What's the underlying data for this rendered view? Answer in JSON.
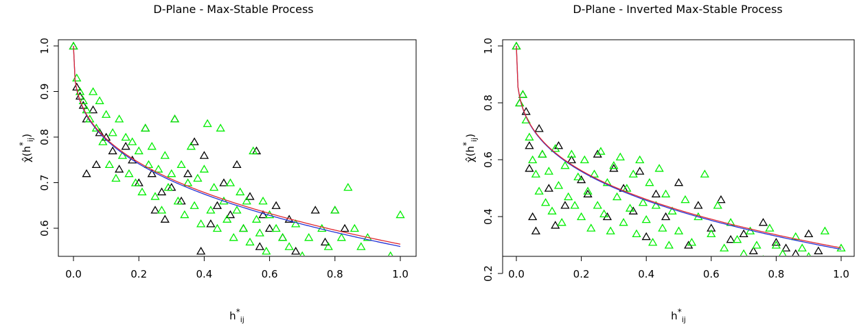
{
  "colors": {
    "black_series": "#000000",
    "green_series": "#00ee00",
    "curve_red": "#e0262f",
    "curve_blue": "#2432d6"
  },
  "chart_data": [
    {
      "type": "scatter",
      "title": "D-Plane - Max-Stable Process",
      "xlabel": "h*ij",
      "ylabel": "χ̂(h*ij)",
      "xlim": [
        0,
        1
      ],
      "ylim": [
        0.52,
        1.0
      ],
      "xticks": [
        "0.0",
        "0.2",
        "0.4",
        "0.6",
        "0.8",
        "1.0"
      ],
      "yticks": [
        "0.6",
        "0.7",
        "0.8",
        "0.9",
        "1.0"
      ],
      "xtick_values": [
        0,
        0.2,
        0.4,
        0.6,
        0.8,
        1.0
      ],
      "ytick_values": [
        0.6,
        0.7,
        0.8,
        0.9,
        1.0
      ],
      "grid": false,
      "point_marker": "open triangle",
      "series": [
        {
          "color_key": "black_series",
          "points": [
            [
              0.0,
              1.0
            ],
            [
              0.01,
              0.91
            ],
            [
              0.02,
              0.89
            ],
            [
              0.03,
              0.87
            ],
            [
              0.04,
              0.84
            ],
            [
              0.04,
              0.72
            ],
            [
              0.06,
              0.86
            ],
            [
              0.07,
              0.74
            ],
            [
              0.08,
              0.81
            ],
            [
              0.1,
              0.8
            ],
            [
              0.12,
              0.77
            ],
            [
              0.14,
              0.73
            ],
            [
              0.16,
              0.78
            ],
            [
              0.18,
              0.75
            ],
            [
              0.2,
              0.7
            ],
            [
              0.22,
              0.82
            ],
            [
              0.24,
              0.72
            ],
            [
              0.25,
              0.64
            ],
            [
              0.27,
              0.68
            ],
            [
              0.28,
              0.62
            ],
            [
              0.3,
              0.69
            ],
            [
              0.31,
              0.84
            ],
            [
              0.33,
              0.66
            ],
            [
              0.35,
              0.72
            ],
            [
              0.37,
              0.79
            ],
            [
              0.39,
              0.55
            ],
            [
              0.4,
              0.76
            ],
            [
              0.42,
              0.61
            ],
            [
              0.44,
              0.65
            ],
            [
              0.46,
              0.7
            ],
            [
              0.48,
              0.63
            ],
            [
              0.5,
              0.74
            ],
            [
              0.52,
              0.6
            ],
            [
              0.54,
              0.67
            ],
            [
              0.56,
              0.77
            ],
            [
              0.57,
              0.56
            ],
            [
              0.58,
              0.63
            ],
            [
              0.6,
              0.6
            ],
            [
              0.62,
              0.65
            ],
            [
              0.64,
              0.58
            ],
            [
              0.66,
              0.62
            ],
            [
              0.68,
              0.55
            ],
            [
              0.7,
              0.53
            ],
            [
              0.72,
              0.52
            ],
            [
              0.74,
              0.64
            ],
            [
              0.77,
              0.57
            ],
            [
              0.8,
              0.64
            ],
            [
              0.83,
              0.6
            ]
          ]
        },
        {
          "color_key": "green_series",
          "points": [
            [
              0.0,
              1.0
            ],
            [
              0.01,
              0.93
            ],
            [
              0.02,
              0.9
            ],
            [
              0.03,
              0.88
            ],
            [
              0.04,
              0.86
            ],
            [
              0.05,
              0.84
            ],
            [
              0.06,
              0.9
            ],
            [
              0.07,
              0.82
            ],
            [
              0.08,
              0.88
            ],
            [
              0.09,
              0.79
            ],
            [
              0.1,
              0.85
            ],
            [
              0.11,
              0.74
            ],
            [
              0.12,
              0.81
            ],
            [
              0.13,
              0.71
            ],
            [
              0.14,
              0.84
            ],
            [
              0.15,
              0.76
            ],
            [
              0.16,
              0.8
            ],
            [
              0.17,
              0.72
            ],
            [
              0.18,
              0.79
            ],
            [
              0.19,
              0.7
            ],
            [
              0.2,
              0.77
            ],
            [
              0.21,
              0.68
            ],
            [
              0.22,
              0.82
            ],
            [
              0.23,
              0.74
            ],
            [
              0.24,
              0.78
            ],
            [
              0.25,
              0.67
            ],
            [
              0.26,
              0.73
            ],
            [
              0.27,
              0.64
            ],
            [
              0.28,
              0.76
            ],
            [
              0.29,
              0.69
            ],
            [
              0.3,
              0.72
            ],
            [
              0.31,
              0.84
            ],
            [
              0.32,
              0.66
            ],
            [
              0.33,
              0.74
            ],
            [
              0.34,
              0.63
            ],
            [
              0.35,
              0.7
            ],
            [
              0.36,
              0.78
            ],
            [
              0.37,
              0.65
            ],
            [
              0.38,
              0.71
            ],
            [
              0.39,
              0.61
            ],
            [
              0.4,
              0.73
            ],
            [
              0.41,
              0.83
            ],
            [
              0.42,
              0.64
            ],
            [
              0.43,
              0.69
            ],
            [
              0.44,
              0.6
            ],
            [
              0.45,
              0.82
            ],
            [
              0.46,
              0.66
            ],
            [
              0.47,
              0.62
            ],
            [
              0.48,
              0.7
            ],
            [
              0.49,
              0.58
            ],
            [
              0.5,
              0.64
            ],
            [
              0.51,
              0.68
            ],
            [
              0.52,
              0.6
            ],
            [
              0.53,
              0.66
            ],
            [
              0.54,
              0.57
            ],
            [
              0.55,
              0.77
            ],
            [
              0.56,
              0.62
            ],
            [
              0.57,
              0.59
            ],
            [
              0.58,
              0.66
            ],
            [
              0.59,
              0.55
            ],
            [
              0.6,
              0.63
            ],
            [
              0.62,
              0.6
            ],
            [
              0.64,
              0.58
            ],
            [
              0.66,
              0.56
            ],
            [
              0.68,
              0.61
            ],
            [
              0.7,
              0.54
            ],
            [
              0.72,
              0.58
            ],
            [
              0.74,
              0.52
            ],
            [
              0.76,
              0.6
            ],
            [
              0.78,
              0.56
            ],
            [
              0.8,
              0.64
            ],
            [
              0.82,
              0.58
            ],
            [
              0.84,
              0.69
            ],
            [
              0.86,
              0.6
            ],
            [
              0.88,
              0.56
            ],
            [
              0.9,
              0.58
            ],
            [
              0.97,
              0.54
            ],
            [
              1.0,
              0.63
            ]
          ]
        }
      ],
      "curves": [
        {
          "color_key": "curve_blue",
          "start": [
            0.0,
            1.0
          ],
          "end": [
            1.0,
            0.56
          ],
          "exponent": 0.33
        },
        {
          "color_key": "curve_red",
          "start": [
            0.0,
            1.0
          ],
          "end": [
            1.0,
            0.565
          ],
          "exponent": 0.33
        }
      ]
    },
    {
      "type": "scatter",
      "title": "D-Plane - Inverted Max-Stable Process",
      "xlabel": "h*ij",
      "ylabel": "χ̂(h*ij)",
      "xlim": [
        0,
        1
      ],
      "ylim": [
        0.2,
        1.0
      ],
      "xticks": [
        "0.0",
        "0.2",
        "0.4",
        "0.6",
        "0.8",
        "1.0"
      ],
      "yticks": [
        "0.2",
        "0.4",
        "0.6",
        "0.8",
        "1.0"
      ],
      "xtick_values": [
        0,
        0.2,
        0.4,
        0.6,
        0.8,
        1.0
      ],
      "ytick_values": [
        0.2,
        0.4,
        0.6,
        0.8,
        1.0
      ],
      "grid": false,
      "point_marker": "open triangle",
      "series": [
        {
          "color_key": "black_series",
          "points": [
            [
              0.0,
              1.0
            ],
            [
              0.01,
              0.8
            ],
            [
              0.02,
              0.83
            ],
            [
              0.03,
              0.77
            ],
            [
              0.04,
              0.65
            ],
            [
              0.04,
              0.57
            ],
            [
              0.05,
              0.4
            ],
            [
              0.06,
              0.35
            ],
            [
              0.07,
              0.71
            ],
            [
              0.08,
              0.62
            ],
            [
              0.1,
              0.5
            ],
            [
              0.12,
              0.37
            ],
            [
              0.13,
              0.65
            ],
            [
              0.15,
              0.44
            ],
            [
              0.17,
              0.6
            ],
            [
              0.2,
              0.53
            ],
            [
              0.22,
              0.48
            ],
            [
              0.25,
              0.62
            ],
            [
              0.28,
              0.4
            ],
            [
              0.3,
              0.57
            ],
            [
              0.33,
              0.5
            ],
            [
              0.36,
              0.42
            ],
            [
              0.38,
              0.56
            ],
            [
              0.4,
              0.33
            ],
            [
              0.43,
              0.48
            ],
            [
              0.46,
              0.4
            ],
            [
              0.5,
              0.52
            ],
            [
              0.53,
              0.3
            ],
            [
              0.56,
              0.44
            ],
            [
              0.6,
              0.36
            ],
            [
              0.63,
              0.46
            ],
            [
              0.66,
              0.32
            ],
            [
              0.7,
              0.34
            ],
            [
              0.73,
              0.28
            ],
            [
              0.76,
              0.38
            ],
            [
              0.8,
              0.31
            ],
            [
              0.83,
              0.29
            ],
            [
              0.86,
              0.27
            ],
            [
              0.88,
              0.24
            ],
            [
              0.9,
              0.34
            ],
            [
              0.93,
              0.28
            ]
          ]
        },
        {
          "color_key": "green_series",
          "points": [
            [
              0.0,
              1.0
            ],
            [
              0.01,
              0.8
            ],
            [
              0.02,
              0.83
            ],
            [
              0.03,
              0.74
            ],
            [
              0.04,
              0.68
            ],
            [
              0.05,
              0.6
            ],
            [
              0.06,
              0.55
            ],
            [
              0.07,
              0.49
            ],
            [
              0.08,
              0.62
            ],
            [
              0.09,
              0.45
            ],
            [
              0.1,
              0.56
            ],
            [
              0.11,
              0.42
            ],
            [
              0.12,
              0.64
            ],
            [
              0.13,
              0.51
            ],
            [
              0.14,
              0.38
            ],
            [
              0.15,
              0.58
            ],
            [
              0.16,
              0.47
            ],
            [
              0.17,
              0.62
            ],
            [
              0.18,
              0.44
            ],
            [
              0.19,
              0.54
            ],
            [
              0.2,
              0.4
            ],
            [
              0.21,
              0.6
            ],
            [
              0.22,
              0.49
            ],
            [
              0.23,
              0.36
            ],
            [
              0.24,
              0.55
            ],
            [
              0.25,
              0.44
            ],
            [
              0.26,
              0.63
            ],
            [
              0.27,
              0.41
            ],
            [
              0.28,
              0.52
            ],
            [
              0.29,
              0.35
            ],
            [
              0.3,
              0.58
            ],
            [
              0.31,
              0.47
            ],
            [
              0.32,
              0.61
            ],
            [
              0.33,
              0.38
            ],
            [
              0.34,
              0.5
            ],
            [
              0.35,
              0.43
            ],
            [
              0.36,
              0.55
            ],
            [
              0.37,
              0.34
            ],
            [
              0.38,
              0.6
            ],
            [
              0.39,
              0.45
            ],
            [
              0.4,
              0.39
            ],
            [
              0.41,
              0.52
            ],
            [
              0.42,
              0.31
            ],
            [
              0.43,
              0.44
            ],
            [
              0.44,
              0.57
            ],
            [
              0.45,
              0.36
            ],
            [
              0.46,
              0.48
            ],
            [
              0.47,
              0.3
            ],
            [
              0.48,
              0.42
            ],
            [
              0.5,
              0.35
            ],
            [
              0.52,
              0.46
            ],
            [
              0.54,
              0.31
            ],
            [
              0.56,
              0.4
            ],
            [
              0.58,
              0.55
            ],
            [
              0.6,
              0.34
            ],
            [
              0.62,
              0.44
            ],
            [
              0.64,
              0.29
            ],
            [
              0.66,
              0.38
            ],
            [
              0.68,
              0.32
            ],
            [
              0.7,
              0.27
            ],
            [
              0.72,
              0.35
            ],
            [
              0.74,
              0.3
            ],
            [
              0.76,
              0.25
            ],
            [
              0.78,
              0.36
            ],
            [
              0.8,
              0.3
            ],
            [
              0.82,
              0.27
            ],
            [
              0.84,
              0.23
            ],
            [
              0.86,
              0.33
            ],
            [
              0.88,
              0.29
            ],
            [
              0.9,
              0.26
            ],
            [
              0.95,
              0.35
            ],
            [
              1.0,
              0.29
            ]
          ]
        }
      ],
      "curves": [
        {
          "color_key": "curve_blue",
          "start": [
            0.0,
            1.0
          ],
          "end": [
            1.0,
            0.285
          ],
          "exponent": 0.3
        },
        {
          "color_key": "curve_red",
          "start": [
            0.0,
            1.0
          ],
          "end": [
            1.0,
            0.29
          ],
          "exponent": 0.3
        }
      ]
    }
  ]
}
